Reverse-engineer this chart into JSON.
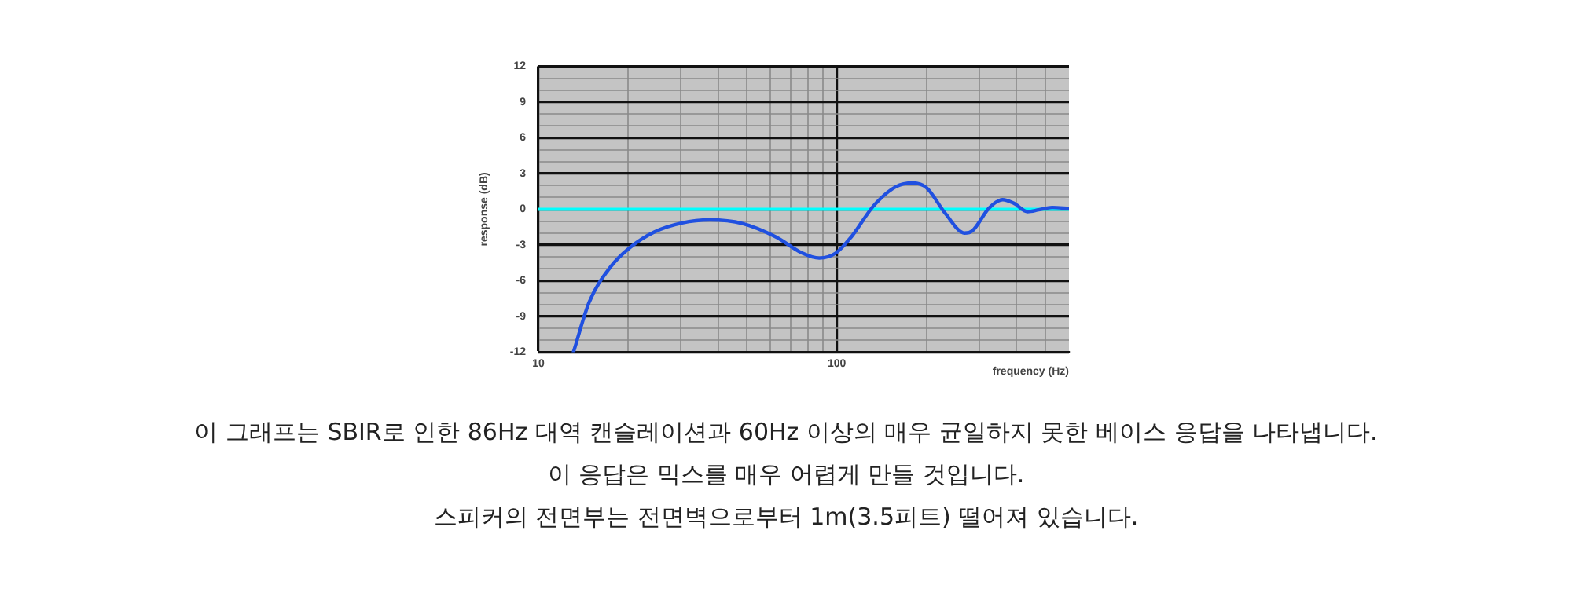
{
  "chart_data": {
    "type": "line",
    "xlabel": "frequency (Hz)",
    "ylabel": "response (dB)",
    "annotations": [
      "이 그래프는 SBIR로 인한 86Hz 대역 캔슬레이션과 60Hz 이상의 매우 균일하지 못한 베이스 응답을 나타냅니다.",
      "이 응답은 믹스를 매우 어렵게 만들 것입니다.",
      "스피커의 전면부는 전면벽으로부터 1m(3.5피트) 떨어져 있습니다."
    ],
    "log": "x",
    "xlim": [
      10,
      600
    ],
    "xticks": [
      10,
      {
        "value": 20,
        "label": null
      },
      {
        "value": 30,
        "label": null
      },
      {
        "value": 40,
        "label": null
      },
      {
        "value": 50,
        "label": null
      },
      {
        "value": 60,
        "label": null
      },
      {
        "value": 70,
        "label": null
      },
      {
        "value": 80,
        "label": null
      },
      {
        "value": 90,
        "label": null
      },
      100,
      {
        "value": 200,
        "label": null
      },
      {
        "value": 300,
        "label": null
      },
      {
        "value": 400,
        "label": null
      },
      {
        "value": 500,
        "label": null
      }
    ],
    "ylim": [
      -12,
      12
    ],
    "yticks": [
      -12,
      {
        "value": -11,
        "label": null
      },
      {
        "value": -10,
        "label": null
      },
      -9,
      {
        "value": -8,
        "label": null
      },
      {
        "value": -7,
        "label": null
      },
      -6,
      {
        "value": -5,
        "label": null
      },
      {
        "value": -4,
        "label": null
      },
      -3,
      {
        "value": -2,
        "label": null
      },
      {
        "value": -1,
        "label": null
      },
      0,
      {
        "value": 1,
        "label": null
      },
      {
        "value": 2,
        "label": null
      },
      3,
      {
        "value": 4,
        "label": null
      },
      {
        "value": 5,
        "label": null
      },
      6,
      {
        "value": 7,
        "label": null
      },
      {
        "value": 8,
        "label": null
      },
      9,
      {
        "value": 10,
        "label": null
      },
      {
        "value": 11,
        "label": null
      },
      12
    ],
    "grid": true,
    "legend": false,
    "marker": "none",
    "line_style": "solid",
    "ref_lines": [
      {
        "axis": "y",
        "value": 0,
        "label": null,
        "color": "#00ffff"
      }
    ],
    "series": [
      {
        "color": "#2050e0",
        "x": [
          13.1,
          14.8,
          17.5,
          20.3,
          24.5,
          30.3,
          37.5,
          48.3,
          62.2,
          76.9,
          87.3,
          99,
          112,
          133,
          158,
          180,
          200,
          231,
          268,
          285,
          324,
          360,
          392,
          436,
          475,
          527,
          600
        ],
        "values": [
          -12,
          -7.8,
          -4.8,
          -3.2,
          -1.9,
          -1.15,
          -0.9,
          -1.2,
          -2.3,
          -3.7,
          -4.1,
          -3.7,
          -2.3,
          0.3,
          1.9,
          2.2,
          1.8,
          -0.35,
          -2.0,
          -1.8,
          0.1,
          0.8,
          0.5,
          -0.2,
          -0.05,
          0.15,
          0.05
        ]
      }
    ]
  }
}
